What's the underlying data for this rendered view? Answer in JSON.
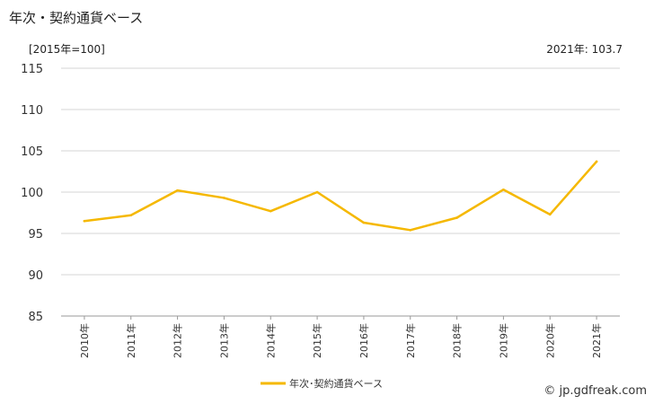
{
  "header": {
    "title": "年次・契約通貨ベース",
    "unit": "[2015年=100]",
    "latest": "2021年: 103.7"
  },
  "footer": {
    "credit": "© jp.gdfreak.com"
  },
  "chart_data": {
    "type": "line",
    "title": "年次・契約通貨ベース",
    "xlabel": "",
    "ylabel": "",
    "categories": [
      "2010年",
      "2011年",
      "2012年",
      "2013年",
      "2014年",
      "2015年",
      "2016年",
      "2017年",
      "2018年",
      "2019年",
      "2020年",
      "2021年"
    ],
    "series": [
      {
        "name": "年次･契約通貨ベース",
        "values": [
          96.5,
          97.2,
          100.2,
          99.3,
          97.7,
          100.0,
          96.3,
          95.4,
          96.9,
          100.3,
          97.3,
          103.7
        ],
        "color": "#F5B800"
      }
    ],
    "ylim": [
      85,
      115
    ],
    "yticks": [
      85,
      90,
      95,
      100,
      105,
      110,
      115
    ],
    "grid": true,
    "legend": "bottom-center"
  }
}
